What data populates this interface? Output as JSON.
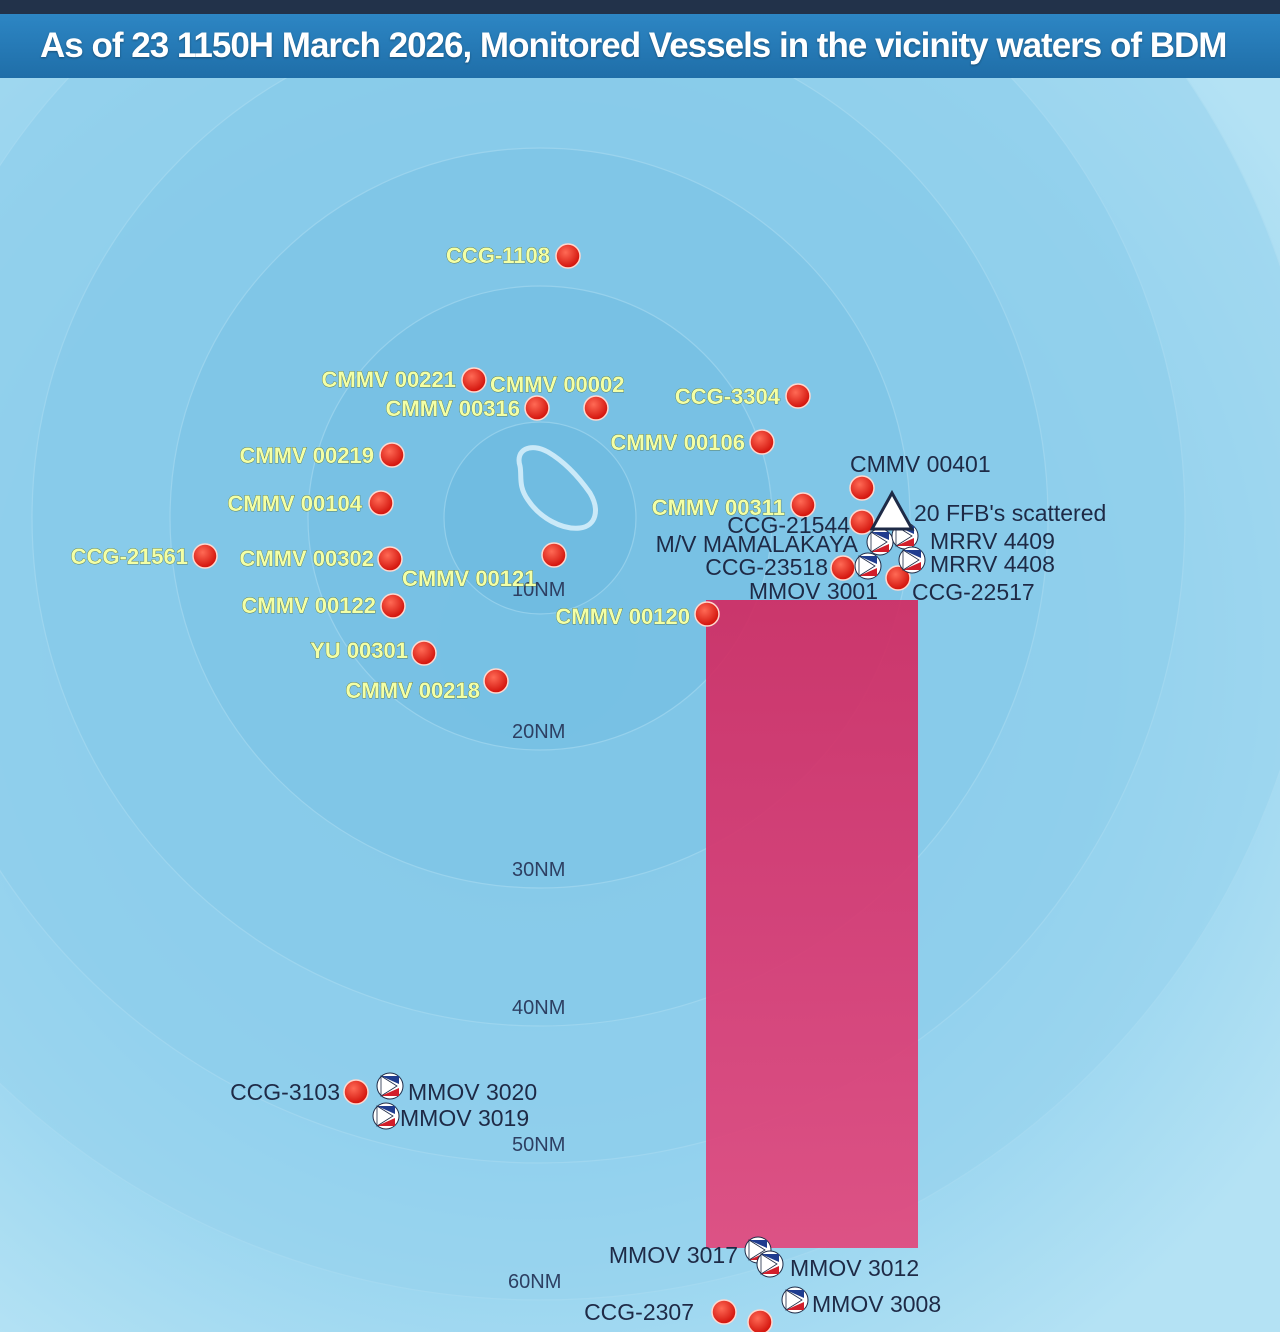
{
  "title": "As of 23 1150H March 2026, Monitored Vessels in the vicinity waters of BDM",
  "colors": {
    "sea_inner": "#7ec8ea",
    "sea_outer": "#a8dcf2",
    "zone": "#d63166",
    "vessel_marker": "#e8221a",
    "label_highlight": "#f3ffa6",
    "title_bar": "#2a80bf"
  },
  "range_rings": [
    {
      "label": "10NM"
    },
    {
      "label": "20NM"
    },
    {
      "label": "30NM"
    },
    {
      "label": "40NM"
    },
    {
      "label": "50NM"
    },
    {
      "label": "60NM"
    }
  ],
  "vessels": [
    {
      "label": "CCG-1108",
      "flag": "china"
    },
    {
      "label": "CMMV 00221",
      "flag": "china"
    },
    {
      "label": "CMMV 00002",
      "flag": "china"
    },
    {
      "label": "CMMV 00316",
      "flag": "china"
    },
    {
      "label": "CCG-3304",
      "flag": "china"
    },
    {
      "label": "CMMV 00106",
      "flag": "china"
    },
    {
      "label": "CMMV 00219",
      "flag": "china"
    },
    {
      "label": "CMMV 00104",
      "flag": "china"
    },
    {
      "label": "CCG-21561",
      "flag": "china"
    },
    {
      "label": "CMMV 00302",
      "flag": "china"
    },
    {
      "label": "CMMV 00121",
      "flag": "china"
    },
    {
      "label": "CMMV 00122",
      "flag": "china"
    },
    {
      "label": "YU 00301",
      "flag": "china"
    },
    {
      "label": "CMMV 00218",
      "flag": "china"
    },
    {
      "label": "CMMV 00120",
      "flag": "china"
    },
    {
      "label": "CMMV 00401",
      "flag": "china"
    },
    {
      "label": "CMMV 00311",
      "flag": "china"
    },
    {
      "label": "CCG-21544",
      "flag": "china"
    },
    {
      "label": "M/V MAMALAKAYA",
      "flag": "philippines"
    },
    {
      "label": "CCG-23518",
      "flag": "china"
    },
    {
      "label": "MMOV 3001",
      "flag": "philippines"
    },
    {
      "label": "CCG-22517",
      "flag": "china"
    },
    {
      "label": "MRRV 4409",
      "flag": "philippines"
    },
    {
      "label": "MRRV 4408",
      "flag": "philippines"
    },
    {
      "label": "20 FFB's scattered",
      "flag": "philippines"
    },
    {
      "label": "CCG-3103",
      "flag": "china"
    },
    {
      "label": "MMOV 3020",
      "flag": "philippines"
    },
    {
      "label": "MMOV 3019",
      "flag": "philippines"
    },
    {
      "label": "MMOV 3017",
      "flag": "philippines"
    },
    {
      "label": "MMOV 3012",
      "flag": "philippines"
    },
    {
      "label": "CCG-2307",
      "flag": "china"
    },
    {
      "label": "MMOV 3008",
      "flag": "philippines"
    }
  ]
}
